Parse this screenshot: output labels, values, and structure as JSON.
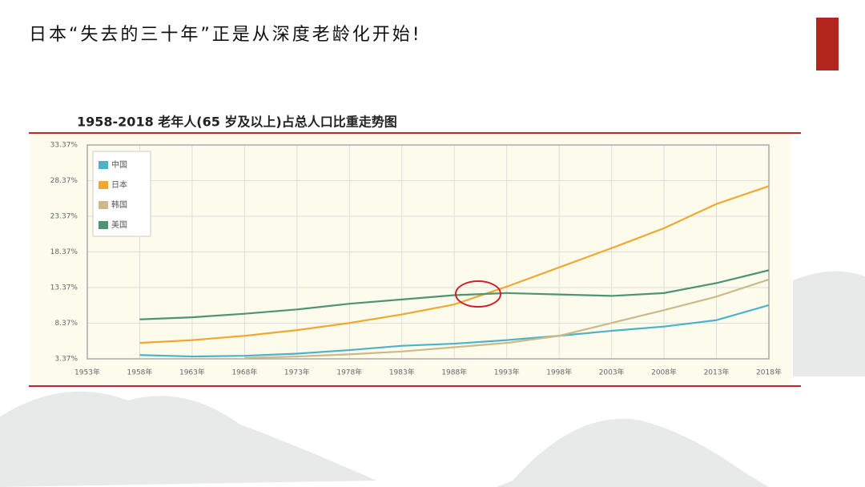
{
  "slide_title": "日本“失去的三十年”正是从深度老龄化开始!",
  "chart_data": {
    "type": "line",
    "title": "1958-2018 老年人(65 岁及以上)占总人口比重走势图",
    "x": [
      1958,
      1963,
      1968,
      1973,
      1978,
      1983,
      1988,
      1993,
      1998,
      2003,
      2008,
      2013,
      2018
    ],
    "series": [
      {
        "name": "中国",
        "color": "#4bb3c8",
        "values": [
          3.9,
          3.7,
          3.8,
          4.1,
          4.6,
          5.2,
          5.5,
          6.0,
          6.6,
          7.3,
          7.9,
          8.8,
          10.9
        ]
      },
      {
        "name": "日本",
        "color": "#f0a830",
        "values": [
          5.6,
          6.0,
          6.6,
          7.4,
          8.4,
          9.6,
          11.0,
          13.5,
          16.2,
          18.9,
          21.7,
          25.1,
          27.6
        ]
      },
      {
        "name": "韩国",
        "color": "#cdb98a",
        "values": [
          null,
          null,
          3.5,
          3.7,
          4.0,
          4.4,
          5.0,
          5.6,
          6.6,
          8.4,
          10.2,
          12.1,
          14.5
        ]
      },
      {
        "name": "美国",
        "color": "#4e9474",
        "values": [
          8.9,
          9.2,
          9.7,
          10.3,
          11.1,
          11.7,
          12.3,
          12.6,
          12.4,
          12.2,
          12.6,
          14.0,
          15.8
        ]
      }
    ],
    "xlim": [
      1953,
      2018
    ],
    "xticks": [
      {
        "value": 1953,
        "label": "1953年"
      },
      {
        "value": 1958,
        "label": "1958年"
      },
      {
        "value": 1963,
        "label": "1963年"
      },
      {
        "value": 1968,
        "label": "1968年"
      },
      {
        "value": 1973,
        "label": "1973年"
      },
      {
        "value": 1978,
        "label": "1978年"
      },
      {
        "value": 1983,
        "label": "1983年"
      },
      {
        "value": 1988,
        "label": "1988年"
      },
      {
        "value": 1993,
        "label": "1993年"
      },
      {
        "value": 1998,
        "label": "1998年"
      },
      {
        "value": 2003,
        "label": "2003年"
      },
      {
        "value": 2008,
        "label": "2008年"
      },
      {
        "value": 2013,
        "label": "2013年"
      },
      {
        "value": 2018,
        "label": "2018年"
      }
    ],
    "ylim": [
      3.37,
      33.37
    ],
    "yticks": [
      {
        "value": 3.37,
        "label": "3.37%"
      },
      {
        "value": 8.37,
        "label": "8.37%"
      },
      {
        "value": 13.37,
        "label": "13.37%"
      },
      {
        "value": 18.37,
        "label": "18.37%"
      },
      {
        "value": 23.37,
        "label": "23.37%"
      },
      {
        "value": 28.37,
        "label": "28.37%"
      },
      {
        "value": 33.37,
        "label": "33.37%"
      }
    ],
    "grid": true,
    "legend": "top-left"
  }
}
